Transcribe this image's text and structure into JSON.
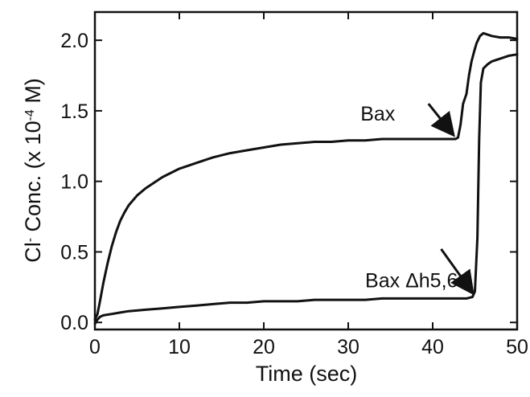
{
  "chart_data": {
    "type": "line",
    "title": "",
    "xlabel": "Time (sec)",
    "ylabel": {
      "prefix": "Cl",
      "prefix_sup": "-",
      "main": " Conc. (x 10",
      "exp": "-4",
      "suffix": " M)"
    },
    "xlim": [
      0,
      50
    ],
    "ylim": [
      -0.05,
      2.2
    ],
    "x_ticks": [
      0,
      10,
      20,
      30,
      40,
      50
    ],
    "y_ticks": [
      0.0,
      0.5,
      1.0,
      1.5,
      2.0
    ],
    "x_tick_labels": [
      "0",
      "10",
      "20",
      "30",
      "40",
      "50"
    ],
    "y_tick_labels": [
      "0.0",
      "0.5",
      "1.0",
      "1.5",
      "2.0"
    ],
    "grid": false,
    "series": [
      {
        "name": "Bax",
        "label_anchor": [
          33.5,
          1.43
        ],
        "arrow_from": [
          39.5,
          1.55
        ],
        "arrow_to": [
          42.3,
          1.34
        ],
        "x": [
          0,
          0.3,
          0.6,
          1,
          1.5,
          2,
          2.5,
          3,
          3.5,
          4,
          5,
          6,
          7,
          8,
          9,
          10,
          12,
          14,
          16,
          18,
          20,
          22,
          24,
          26,
          28,
          30,
          32,
          34,
          36,
          38,
          40,
          42,
          42.7,
          43.0,
          43.3,
          43.6,
          44.0,
          44.3,
          44.6,
          44.9,
          45.2,
          45.6,
          46,
          46.5,
          47,
          48,
          49,
          50
        ],
        "y": [
          0.02,
          0.06,
          0.15,
          0.28,
          0.42,
          0.54,
          0.64,
          0.72,
          0.78,
          0.83,
          0.9,
          0.95,
          0.99,
          1.03,
          1.06,
          1.09,
          1.13,
          1.17,
          1.2,
          1.22,
          1.24,
          1.26,
          1.27,
          1.28,
          1.28,
          1.29,
          1.29,
          1.3,
          1.3,
          1.3,
          1.3,
          1.3,
          1.3,
          1.31,
          1.4,
          1.55,
          1.62,
          1.75,
          1.85,
          1.92,
          1.98,
          2.03,
          2.05,
          2.04,
          2.03,
          2.02,
          2.02,
          2.01
        ]
      },
      {
        "name": "Bax Δh5,6",
        "label_anchor": [
          37.5,
          0.25
        ],
        "arrow_from": [
          41.0,
          0.52
        ],
        "arrow_to": [
          44.6,
          0.22
        ],
        "x": [
          0,
          0.3,
          0.6,
          1,
          2,
          3,
          4,
          6,
          8,
          10,
          12,
          14,
          16,
          18,
          20,
          22,
          24,
          26,
          28,
          30,
          32,
          34,
          36,
          38,
          40,
          42,
          44,
          44.7,
          45.0,
          45.3,
          45.5,
          45.7,
          46,
          46.5,
          47,
          48,
          49,
          50
        ],
        "y": [
          -0.01,
          0.02,
          0.04,
          0.05,
          0.06,
          0.07,
          0.08,
          0.09,
          0.1,
          0.11,
          0.12,
          0.13,
          0.14,
          0.14,
          0.15,
          0.15,
          0.15,
          0.16,
          0.16,
          0.16,
          0.16,
          0.17,
          0.17,
          0.17,
          0.17,
          0.17,
          0.17,
          0.18,
          0.22,
          0.6,
          1.3,
          1.7,
          1.8,
          1.83,
          1.85,
          1.87,
          1.89,
          1.9
        ]
      }
    ]
  }
}
